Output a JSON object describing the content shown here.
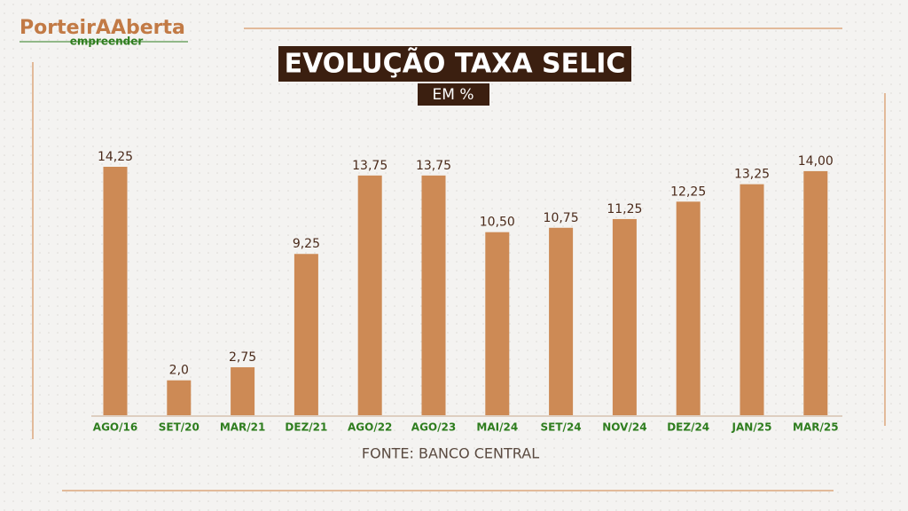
{
  "logo": {
    "name": "PorteirAAberta",
    "tagline": "empreender"
  },
  "chart_data": {
    "type": "bar",
    "title": "EVOLUÇÃO TAXA SELIC",
    "subtitle": "EM %",
    "source": "FONTE: BANCO CENTRAL",
    "categories": [
      "AGO/16",
      "SET/20",
      "MAR/21",
      "DEZ/21",
      "AGO/22",
      "AGO/23",
      "MAI/24",
      "SET/24",
      "NOV/24",
      "DEZ/24",
      "JAN/25",
      "MAR/25"
    ],
    "values": [
      14.25,
      2,
      2.75,
      9.25,
      13.75,
      13.75,
      10.5,
      10.75,
      11.25,
      12.25,
      13.25,
      14
    ],
    "value_labels": [
      "14,25",
      "2,0",
      "2,75",
      "9,25",
      "13,75",
      "13,75",
      "10,50",
      "10,75",
      "11,25",
      "12,25",
      "13,25",
      "14,00"
    ],
    "color": "#cd8a55"
  }
}
